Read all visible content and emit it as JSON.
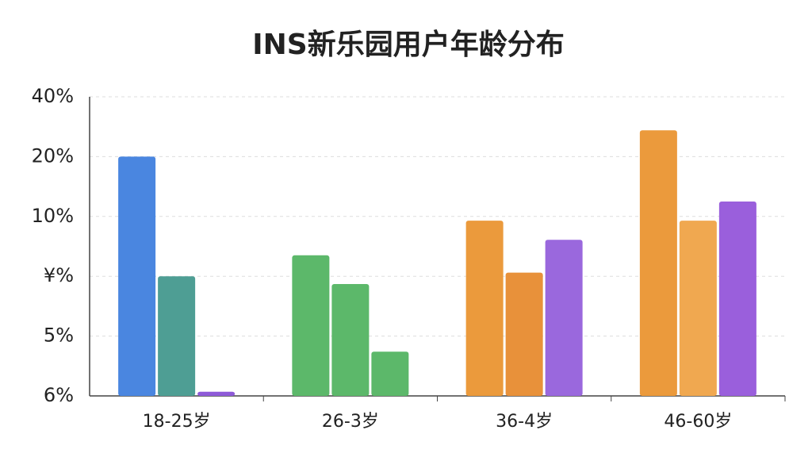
{
  "chart_data": {
    "type": "bar",
    "title": "INS新乐园用户年龄分布",
    "categories": [
      "18-25岁",
      "26-3岁",
      "36-4岁",
      "46-60岁"
    ],
    "series": [
      {
        "colors": [
          "#4a86e0",
          "#5cb86a",
          "#eb9a3c",
          "#eb9a3c"
        ],
        "values": [
          4.0,
          2.35,
          2.93,
          4.44
        ]
      },
      {
        "colors": [
          "#4e9e94",
          "#5cb86a",
          "#e8913a",
          "#f0a850"
        ],
        "values": [
          2.0,
          1.87,
          2.06,
          2.93
        ]
      },
      {
        "colors": [
          "#8e5ad8",
          "#5cb86a",
          "#9a68dd",
          "#9a5fdc"
        ],
        "values": [
          0.07,
          0.74,
          2.61,
          3.25
        ]
      }
    ],
    "ylim": [
      0,
      5
    ],
    "yticks": [
      {
        "value": 0,
        "label": "6%"
      },
      {
        "value": 1,
        "label": "5%"
      },
      {
        "value": 2,
        "label": "¥%"
      },
      {
        "value": 3,
        "label": "10%"
      },
      {
        "value": 4,
        "label": "20%"
      },
      {
        "value": 5,
        "label": "40%"
      }
    ],
    "grid": true
  }
}
